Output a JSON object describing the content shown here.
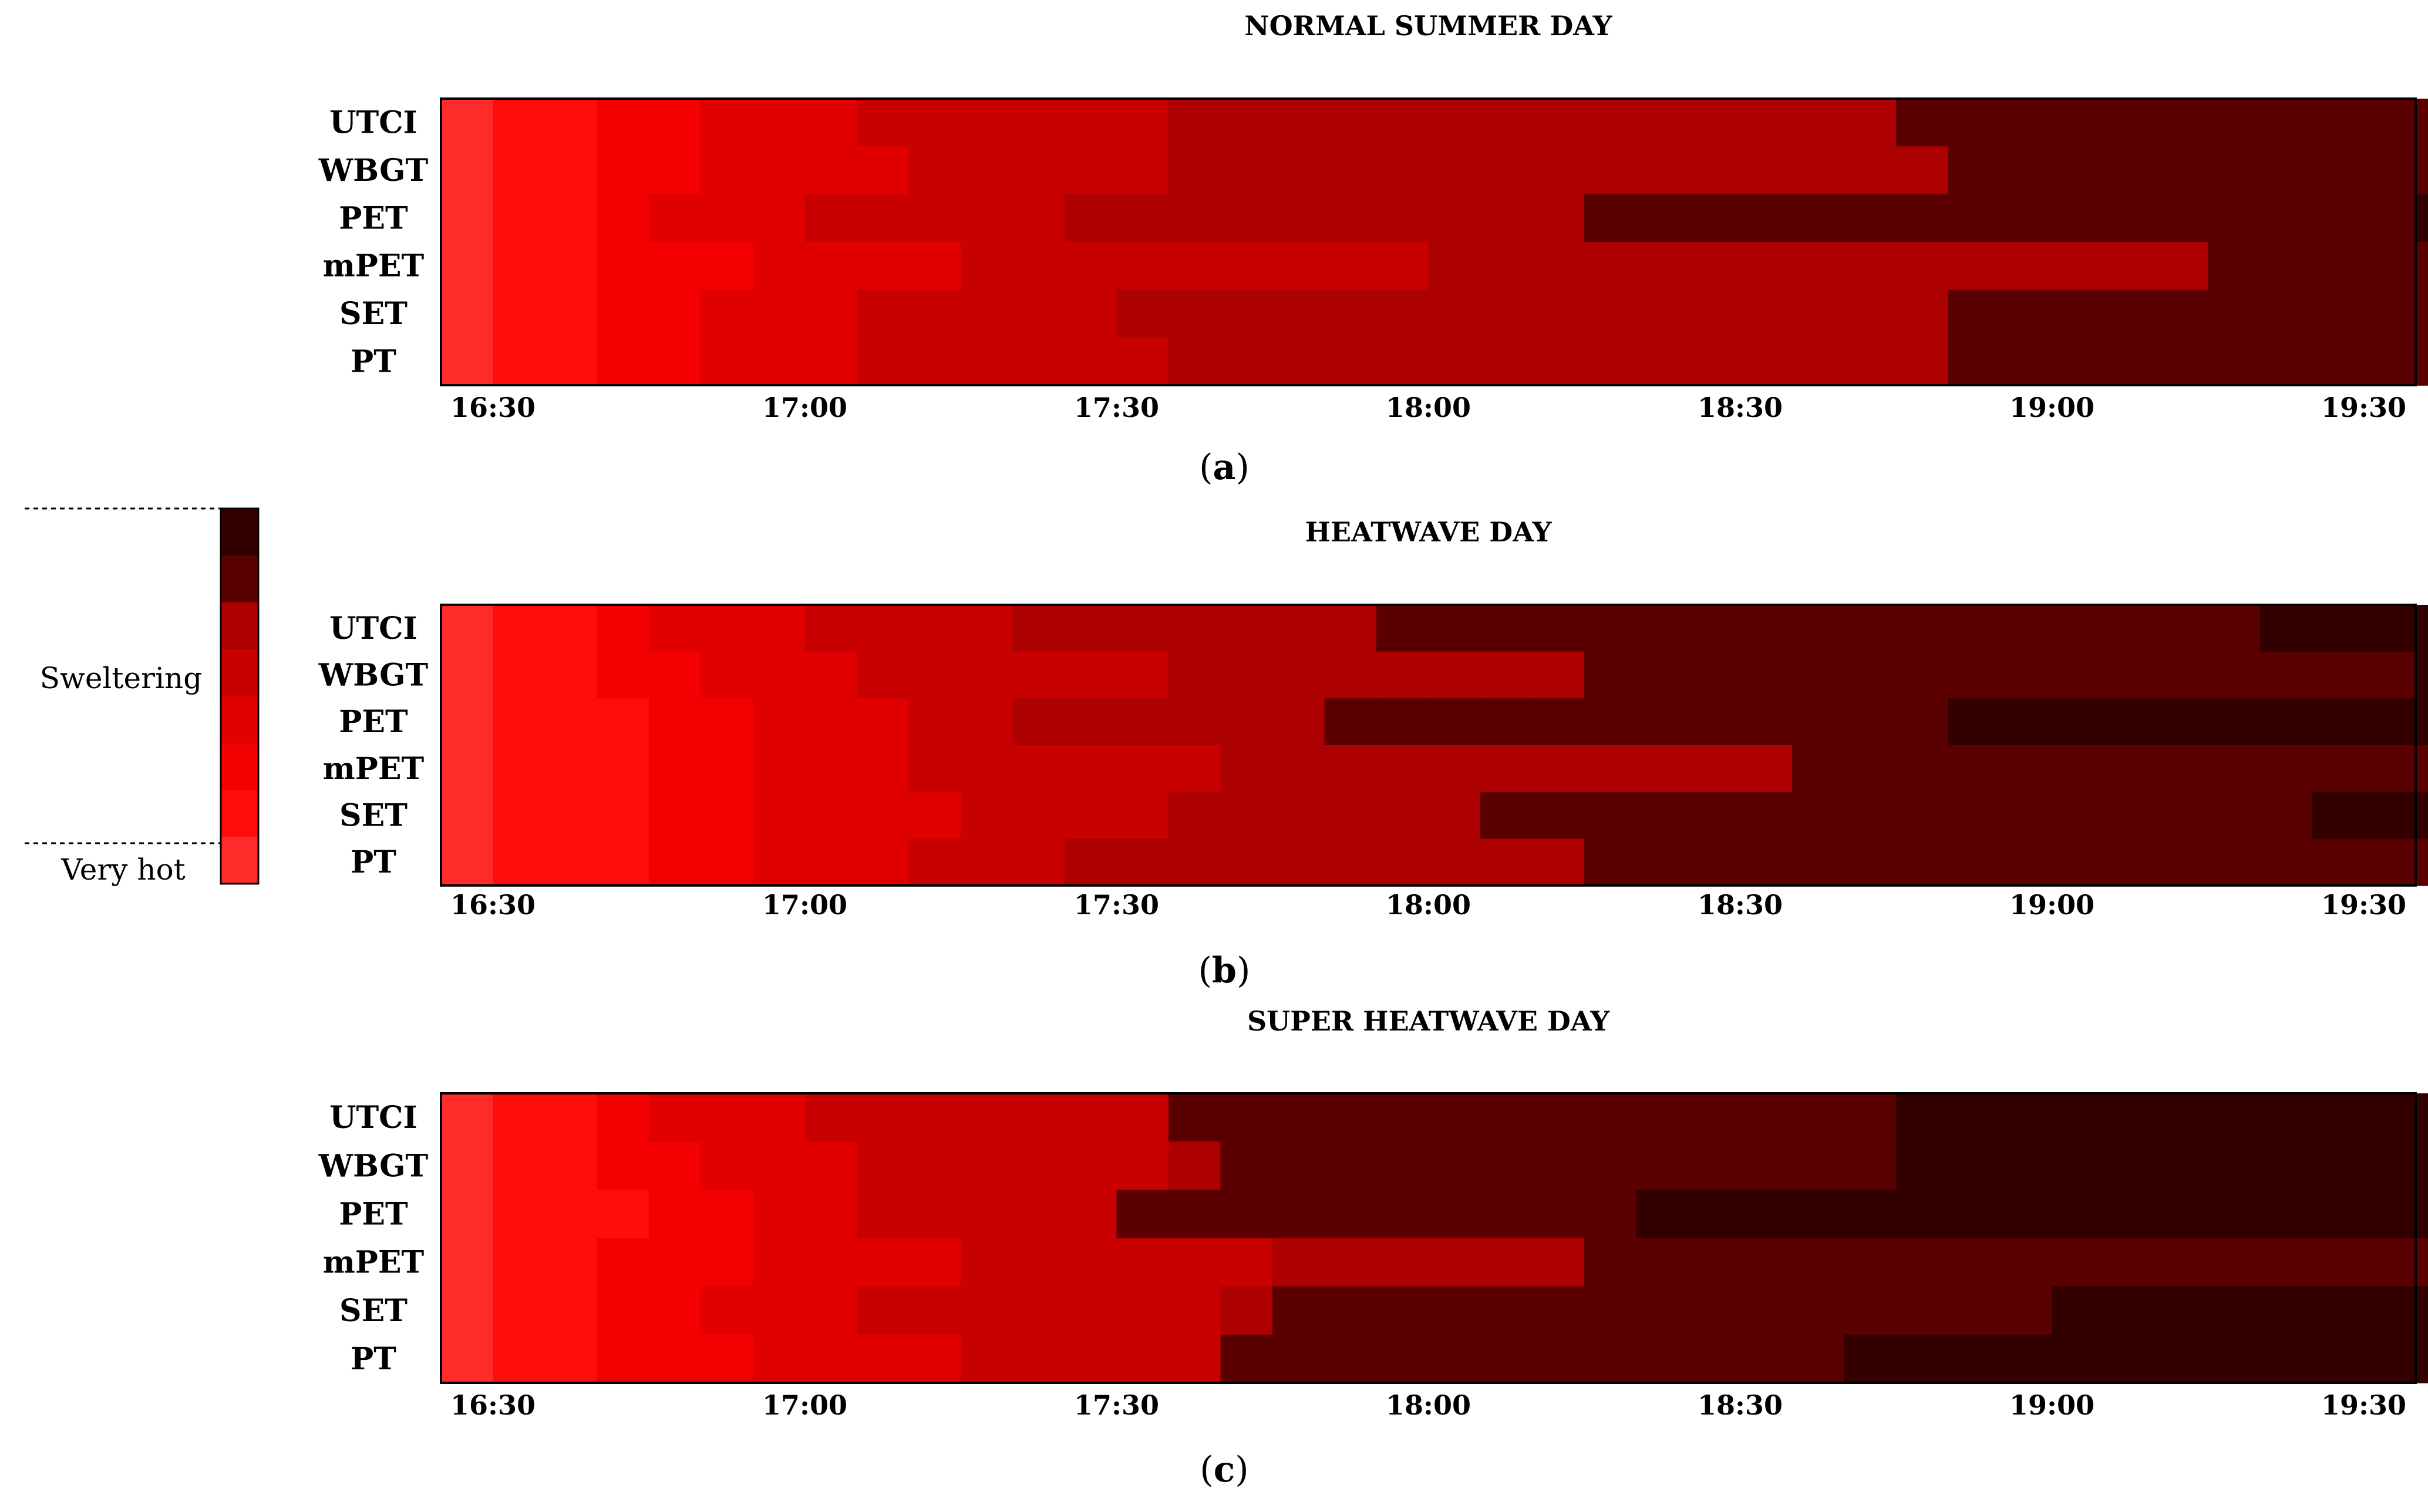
{
  "colors": {
    "c0": "#ff2a2a",
    "c1": "#ff0d0d",
    "c2": "#f30000",
    "c3": "#e00000",
    "c4": "#c80000",
    "c5": "#ad0000",
    "c6": "#5a0000",
    "c7": "#330000"
  },
  "legend": {
    "label_upper": "Sweltering",
    "label_lower": "Very hot",
    "scale": [
      "c7",
      "c6",
      "c5",
      "c4",
      "c3",
      "c2",
      "c1",
      "c0"
    ]
  },
  "chart_data": [
    {
      "type": "heatmap",
      "title": "NORMAL SUMMER DAY",
      "caption": "(a)",
      "caption_letter": "a",
      "rows": [
        "UTCI",
        "WBGT",
        "PET",
        "mPET",
        "SET",
        "PT"
      ],
      "x_ticks": [
        "16:30",
        "17:00",
        "17:30",
        "18:00",
        "18:30",
        "19:00",
        "19:30"
      ],
      "x_range": [
        "16:25",
        "19:35"
      ],
      "step_minutes": 5,
      "cells": [
        [
          "c0",
          "c1",
          "c1",
          "c2",
          "c2",
          "c3",
          "c3",
          "c3",
          "c4",
          "c4",
          "c4",
          "c4",
          "c4",
          "c4",
          "c5",
          "c5",
          "c5",
          "c5",
          "c5",
          "c5",
          "c5",
          "c5",
          "c5",
          "c5",
          "c5",
          "c5",
          "c5",
          "c5",
          "c6",
          "c6",
          "c6",
          "c6",
          "c6",
          "c6",
          "c6",
          "c6",
          "c6",
          "c6",
          "c6"
        ],
        [
          "c0",
          "c1",
          "c1",
          "c2",
          "c2",
          "c3",
          "c3",
          "c3",
          "c3",
          "c4",
          "c4",
          "c4",
          "c4",
          "c4",
          "c5",
          "c5",
          "c5",
          "c5",
          "c5",
          "c5",
          "c5",
          "c5",
          "c5",
          "c5",
          "c5",
          "c5",
          "c5",
          "c5",
          "c5",
          "c6",
          "c6",
          "c6",
          "c6",
          "c6",
          "c6",
          "c6",
          "c6",
          "c6",
          "c6"
        ],
        [
          "c0",
          "c1",
          "c1",
          "c2",
          "c3",
          "c3",
          "c3",
          "c4",
          "c4",
          "c4",
          "c4",
          "c4",
          "c5",
          "c5",
          "c5",
          "c5",
          "c5",
          "c5",
          "c5",
          "c5",
          "c5",
          "c5",
          "c6",
          "c6",
          "c6",
          "c6",
          "c6",
          "c6",
          "c6",
          "c6",
          "c6",
          "c6",
          "c6",
          "c6",
          "c6",
          "c6",
          "c6",
          "c6",
          "c7"
        ],
        [
          "c0",
          "c1",
          "c1",
          "c2",
          "c2",
          "c2",
          "c3",
          "c3",
          "c3",
          "c3",
          "c4",
          "c4",
          "c4",
          "c4",
          "c4",
          "c4",
          "c4",
          "c4",
          "c4",
          "c5",
          "c5",
          "c5",
          "c5",
          "c5",
          "c5",
          "c5",
          "c5",
          "c5",
          "c5",
          "c5",
          "c5",
          "c5",
          "c5",
          "c5",
          "c6",
          "c6",
          "c6",
          "c6",
          "c6"
        ],
        [
          "c0",
          "c1",
          "c1",
          "c2",
          "c2",
          "c3",
          "c3",
          "c3",
          "c4",
          "c4",
          "c4",
          "c4",
          "c4",
          "c5",
          "c5",
          "c5",
          "c5",
          "c5",
          "c5",
          "c5",
          "c5",
          "c5",
          "c5",
          "c5",
          "c5",
          "c5",
          "c5",
          "c5",
          "c5",
          "c6",
          "c6",
          "c6",
          "c6",
          "c6",
          "c6",
          "c6",
          "c6",
          "c6",
          "c6"
        ],
        [
          "c0",
          "c1",
          "c1",
          "c2",
          "c2",
          "c3",
          "c3",
          "c3",
          "c4",
          "c4",
          "c4",
          "c4",
          "c4",
          "c4",
          "c5",
          "c5",
          "c5",
          "c5",
          "c5",
          "c5",
          "c5",
          "c5",
          "c5",
          "c5",
          "c5",
          "c5",
          "c5",
          "c5",
          "c5",
          "c6",
          "c6",
          "c6",
          "c6",
          "c6",
          "c6",
          "c6",
          "c6",
          "c6",
          "c6"
        ]
      ]
    },
    {
      "type": "heatmap",
      "title": "HEATWAVE DAY",
      "caption": "(b)",
      "caption_letter": "b",
      "rows": [
        "UTCI",
        "WBGT",
        "PET",
        "mPET",
        "SET",
        "PT"
      ],
      "x_ticks": [
        "16:30",
        "17:00",
        "17:30",
        "18:00",
        "18:30",
        "19:00",
        "19:30"
      ],
      "x_range": [
        "16:25",
        "19:35"
      ],
      "step_minutes": 5,
      "cells": [
        [
          "c0",
          "c1",
          "c1",
          "c2",
          "c3",
          "c3",
          "c3",
          "c4",
          "c4",
          "c4",
          "c4",
          "c5",
          "c5",
          "c5",
          "c5",
          "c5",
          "c5",
          "c5",
          "c6",
          "c6",
          "c6",
          "c6",
          "c6",
          "c6",
          "c6",
          "c6",
          "c6",
          "c6",
          "c6",
          "c6",
          "c6",
          "c6",
          "c6",
          "c6",
          "c6",
          "c7",
          "c7",
          "c7",
          "c7"
        ],
        [
          "c0",
          "c1",
          "c1",
          "c2",
          "c2",
          "c3",
          "c3",
          "c3",
          "c4",
          "c4",
          "c4",
          "c4",
          "c4",
          "c4",
          "c5",
          "c5",
          "c5",
          "c5",
          "c5",
          "c5",
          "c5",
          "c5",
          "c6",
          "c6",
          "c6",
          "c6",
          "c6",
          "c6",
          "c6",
          "c6",
          "c6",
          "c6",
          "c6",
          "c6",
          "c6",
          "c6",
          "c6",
          "c6",
          "c7"
        ],
        [
          "c0",
          "c1",
          "c1",
          "c1",
          "c2",
          "c2",
          "c3",
          "c3",
          "c3",
          "c4",
          "c4",
          "c5",
          "c5",
          "c5",
          "c5",
          "c5",
          "c5",
          "c6",
          "c6",
          "c6",
          "c6",
          "c6",
          "c6",
          "c6",
          "c6",
          "c6",
          "c6",
          "c6",
          "c6",
          "c7",
          "c7",
          "c7",
          "c7",
          "c7",
          "c7",
          "c7",
          "c7",
          "c7",
          "c7"
        ],
        [
          "c0",
          "c1",
          "c1",
          "c1",
          "c2",
          "c2",
          "c3",
          "c3",
          "c3",
          "c4",
          "c4",
          "c4",
          "c4",
          "c4",
          "c4",
          "c5",
          "c5",
          "c5",
          "c5",
          "c5",
          "c5",
          "c5",
          "c5",
          "c5",
          "c5",
          "c5",
          "c6",
          "c6",
          "c6",
          "c6",
          "c6",
          "c6",
          "c6",
          "c6",
          "c6",
          "c6",
          "c6",
          "c6",
          "c6"
        ],
        [
          "c0",
          "c1",
          "c1",
          "c1",
          "c2",
          "c2",
          "c3",
          "c3",
          "c3",
          "c3",
          "c4",
          "c4",
          "c4",
          "c4",
          "c5",
          "c5",
          "c5",
          "c5",
          "c5",
          "c5",
          "c6",
          "c6",
          "c6",
          "c6",
          "c6",
          "c6",
          "c6",
          "c6",
          "c6",
          "c6",
          "c6",
          "c6",
          "c6",
          "c6",
          "c6",
          "c6",
          "c7",
          "c7",
          "c7"
        ],
        [
          "c0",
          "c1",
          "c1",
          "c1",
          "c2",
          "c2",
          "c3",
          "c3",
          "c3",
          "c4",
          "c4",
          "c4",
          "c5",
          "c5",
          "c5",
          "c5",
          "c5",
          "c5",
          "c5",
          "c5",
          "c5",
          "c5",
          "c6",
          "c6",
          "c6",
          "c6",
          "c6",
          "c6",
          "c6",
          "c6",
          "c6",
          "c6",
          "c6",
          "c6",
          "c6",
          "c6",
          "c6",
          "c6",
          "c6"
        ]
      ]
    },
    {
      "type": "heatmap",
      "title": "SUPER HEATWAVE DAY",
      "caption": "(c)",
      "caption_letter": "c",
      "rows": [
        "UTCI",
        "WBGT",
        "PET",
        "mPET",
        "SET",
        "PT"
      ],
      "x_ticks": [
        "16:30",
        "17:00",
        "17:30",
        "18:00",
        "18:30",
        "19:00",
        "19:30"
      ],
      "x_range": [
        "16:25",
        "19:35"
      ],
      "step_minutes": 5,
      "cells": [
        [
          "c0",
          "c1",
          "c1",
          "c2",
          "c3",
          "c3",
          "c3",
          "c4",
          "c4",
          "c4",
          "c4",
          "c4",
          "c4",
          "c4",
          "c6",
          "c6",
          "c6",
          "c6",
          "c6",
          "c6",
          "c6",
          "c6",
          "c6",
          "c6",
          "c6",
          "c6",
          "c6",
          "c6",
          "c7",
          "c7",
          "c7",
          "c7",
          "c7",
          "c7",
          "c7",
          "c7",
          "c7",
          "c7",
          "c7"
        ],
        [
          "c0",
          "c1",
          "c1",
          "c2",
          "c2",
          "c3",
          "c3",
          "c3",
          "c4",
          "c4",
          "c4",
          "c4",
          "c4",
          "c4",
          "c5",
          "c6",
          "c6",
          "c6",
          "c6",
          "c6",
          "c6",
          "c6",
          "c6",
          "c6",
          "c6",
          "c6",
          "c6",
          "c6",
          "c7",
          "c7",
          "c7",
          "c7",
          "c7",
          "c7",
          "c7",
          "c7",
          "c7",
          "c7",
          "c7"
        ],
        [
          "c0",
          "c1",
          "c1",
          "c1",
          "c2",
          "c2",
          "c3",
          "c3",
          "c4",
          "c4",
          "c4",
          "c4",
          "c4",
          "c6",
          "c6",
          "c6",
          "c6",
          "c6",
          "c6",
          "c6",
          "c6",
          "c6",
          "c6",
          "c7",
          "c7",
          "c7",
          "c7",
          "c7",
          "c7",
          "c7",
          "c7",
          "c7",
          "c7",
          "c7",
          "c7",
          "c7",
          "c7",
          "c7",
          "c7"
        ],
        [
          "c0",
          "c1",
          "c1",
          "c2",
          "c2",
          "c2",
          "c3",
          "c3",
          "c3",
          "c3",
          "c4",
          "c4",
          "c4",
          "c4",
          "c4",
          "c4",
          "c5",
          "c5",
          "c5",
          "c5",
          "c5",
          "c5",
          "c6",
          "c6",
          "c6",
          "c6",
          "c6",
          "c6",
          "c6",
          "c6",
          "c6",
          "c6",
          "c6",
          "c6",
          "c6",
          "c6",
          "c6",
          "c6",
          "c6"
        ],
        [
          "c0",
          "c1",
          "c1",
          "c2",
          "c2",
          "c3",
          "c3",
          "c3",
          "c4",
          "c4",
          "c4",
          "c4",
          "c4",
          "c4",
          "c4",
          "c5",
          "c6",
          "c6",
          "c6",
          "c6",
          "c6",
          "c6",
          "c6",
          "c6",
          "c6",
          "c6",
          "c6",
          "c6",
          "c6",
          "c6",
          "c6",
          "c7",
          "c7",
          "c7",
          "c7",
          "c7",
          "c7",
          "c7",
          "c7"
        ],
        [
          "c0",
          "c1",
          "c1",
          "c2",
          "c2",
          "c2",
          "c3",
          "c3",
          "c3",
          "c3",
          "c4",
          "c4",
          "c4",
          "c4",
          "c4",
          "c6",
          "c6",
          "c6",
          "c6",
          "c6",
          "c6",
          "c6",
          "c6",
          "c6",
          "c6",
          "c6",
          "c6",
          "c7",
          "c7",
          "c7",
          "c7",
          "c7",
          "c7",
          "c7",
          "c7",
          "c7",
          "c7",
          "c7",
          "c7"
        ]
      ]
    }
  ]
}
